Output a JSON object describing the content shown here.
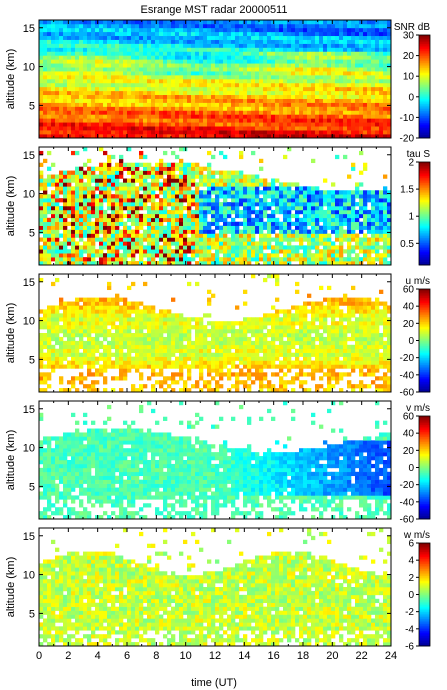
{
  "title": "Esrange MST radar 20000511",
  "chart_data": [
    {
      "type": "heatmap",
      "quantity": "SNR",
      "colorbar_label": "SNR dB",
      "colorbar_ticks": [
        -20,
        -10,
        0,
        10,
        20,
        30
      ],
      "clim": [
        -20,
        30
      ],
      "ylabel": "altitude (km)",
      "yticks": [
        5,
        10,
        15
      ],
      "ylim": [
        0.8,
        16
      ],
      "xlim": [
        0,
        24
      ]
    },
    {
      "type": "heatmap",
      "quantity": "tau",
      "colorbar_label": "tau S",
      "colorbar_ticks": [
        0.5,
        1,
        1.5,
        2
      ],
      "clim": [
        0.1,
        2
      ],
      "ylabel": "altitude (km)",
      "yticks": [
        5,
        10,
        15
      ],
      "ylim": [
        0.8,
        16
      ],
      "xlim": [
        0,
        24
      ]
    },
    {
      "type": "heatmap",
      "quantity": "u",
      "colorbar_label": "u m/s",
      "colorbar_ticks": [
        -60,
        -40,
        -20,
        0,
        20,
        40,
        60
      ],
      "clim": [
        -60,
        60
      ],
      "ylabel": "altitude (km)",
      "yticks": [
        5,
        10,
        15
      ],
      "ylim": [
        0.8,
        16
      ],
      "xlim": [
        0,
        24
      ]
    },
    {
      "type": "heatmap",
      "quantity": "v",
      "colorbar_label": "v m/s",
      "colorbar_ticks": [
        -60,
        -40,
        -20,
        0,
        20,
        40,
        60
      ],
      "clim": [
        -60,
        60
      ],
      "ylabel": "altitude (km)",
      "yticks": [
        5,
        10,
        15
      ],
      "ylim": [
        0.8,
        16
      ],
      "xlim": [
        0,
        24
      ]
    },
    {
      "type": "heatmap",
      "quantity": "w",
      "colorbar_label": "w m/s",
      "colorbar_ticks": [
        -6,
        -4,
        -2,
        0,
        2,
        4,
        6
      ],
      "clim": [
        -6,
        6
      ],
      "ylabel": "altitude (km)",
      "yticks": [
        5,
        10,
        15
      ],
      "ylim": [
        0.8,
        16
      ],
      "xlim": [
        0,
        24
      ],
      "xlabel": "time (UT)",
      "xticks": [
        0,
        2,
        4,
        6,
        8,
        10,
        12,
        14,
        16,
        18,
        20,
        22,
        24
      ]
    }
  ],
  "colormap": [
    "#00008f",
    "#0000ff",
    "#007fff",
    "#00ffff",
    "#7fff7f",
    "#ffff00",
    "#ff7f00",
    "#ff0000",
    "#7f0000"
  ]
}
